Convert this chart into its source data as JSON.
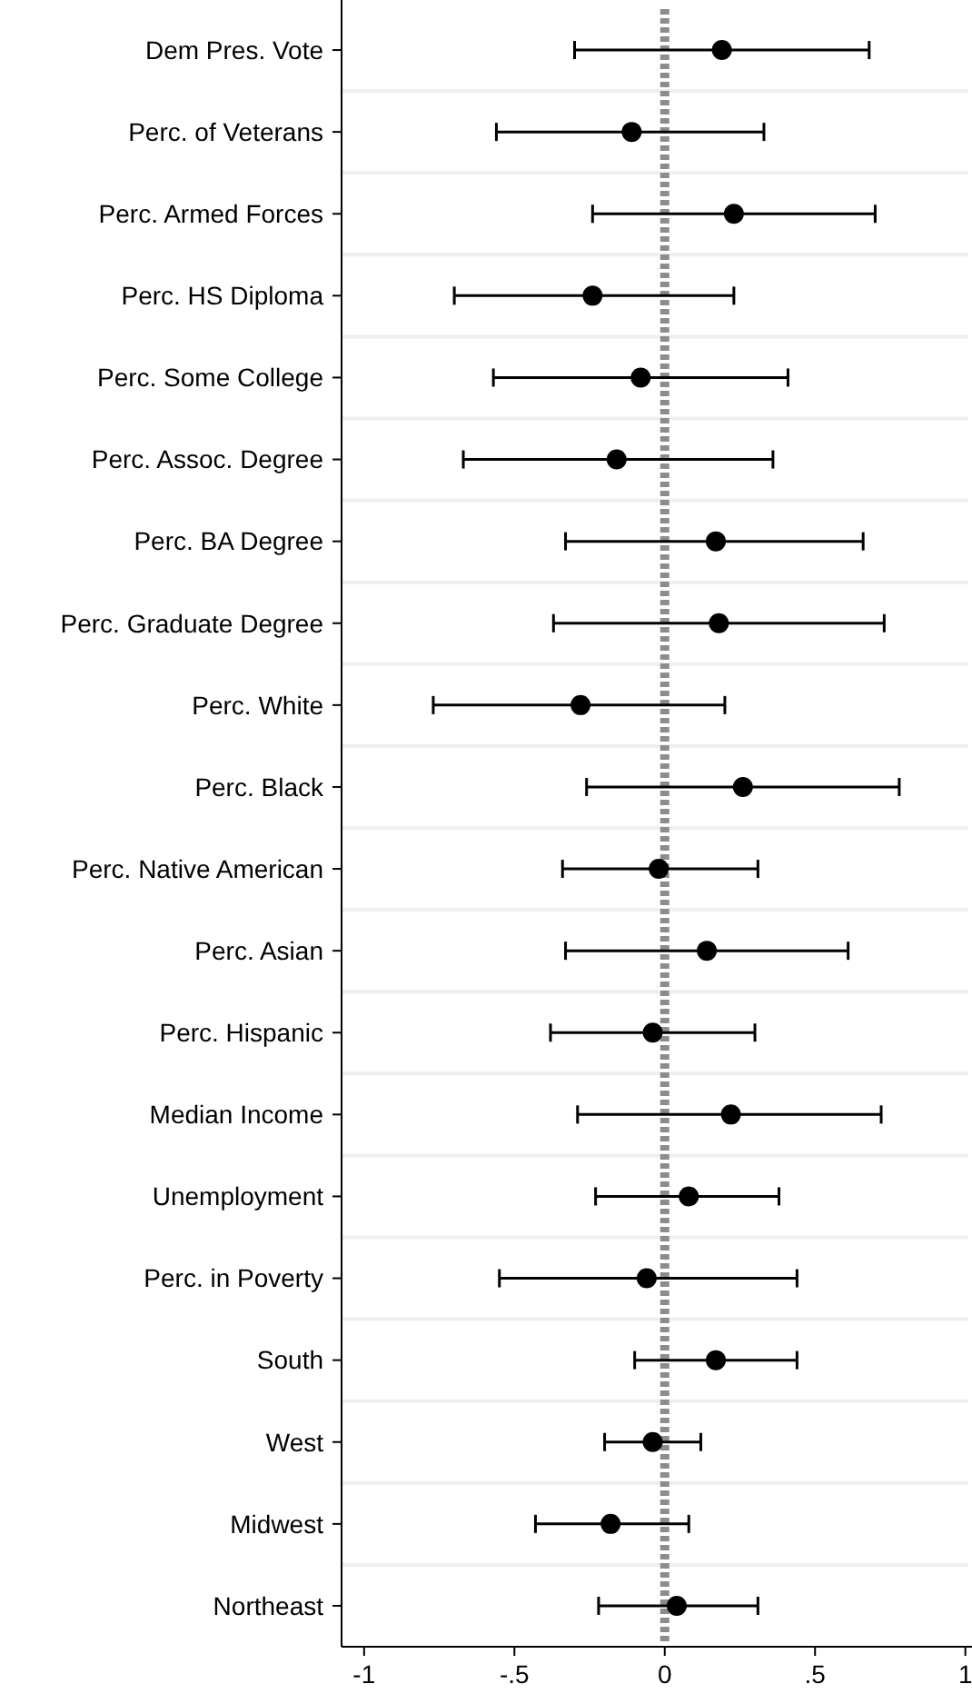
{
  "chart_data": {
    "type": "scatter",
    "orientation": "horizontal",
    "categories": [
      "Dem Pres. Vote",
      "Perc. of Veterans",
      "Perc. Armed Forces",
      "Perc. HS Diploma",
      "Perc. Some College",
      "Perc. Assoc. Degree",
      "Perc. BA Degree",
      "Perc. Graduate Degree",
      "Perc. White",
      "Perc. Black",
      "Perc. Native American",
      "Perc. Asian",
      "Perc. Hispanic",
      "Median Income",
      "Unemployment",
      "Perc. in Poverty",
      "South",
      "West",
      "Midwest",
      "Northeast"
    ],
    "values": [
      0.19,
      -0.11,
      0.23,
      -0.24,
      -0.08,
      -0.16,
      0.17,
      0.18,
      -0.28,
      0.26,
      -0.02,
      0.14,
      -0.04,
      0.22,
      0.08,
      -0.06,
      0.17,
      -0.04,
      -0.18,
      0.04
    ],
    "errors": [
      [
        -0.3,
        0.68
      ],
      [
        -0.56,
        0.33
      ],
      [
        -0.24,
        0.7
      ],
      [
        -0.7,
        0.23
      ],
      [
        -0.57,
        0.41
      ],
      [
        -0.67,
        0.36
      ],
      [
        -0.33,
        0.66
      ],
      [
        -0.37,
        0.73
      ],
      [
        -0.77,
        0.2
      ],
      [
        -0.26,
        0.78
      ],
      [
        -0.34,
        0.31
      ],
      [
        -0.33,
        0.61
      ],
      [
        -0.38,
        0.3
      ],
      [
        -0.29,
        0.72
      ],
      [
        -0.23,
        0.38
      ],
      [
        -0.55,
        0.44
      ],
      [
        -0.1,
        0.44
      ],
      [
        -0.2,
        0.12
      ],
      [
        -0.43,
        0.08
      ],
      [
        -0.22,
        0.31
      ]
    ],
    "color": "#000000",
    "marker": "circle",
    "xlim": [
      -1.075,
      1.01
    ],
    "xticks": [
      {
        "value": -1,
        "label": "-1"
      },
      {
        "value": -0.5,
        "label": "-.5"
      },
      {
        "value": 0,
        "label": "0"
      },
      {
        "value": 0.5,
        "label": ".5"
      },
      {
        "value": 1,
        "label": "1"
      }
    ],
    "grid": "y",
    "ref_lines": [
      {
        "axis": "x",
        "value": 0,
        "color": "#8c8c8c",
        "line_style": "dashed"
      }
    ]
  }
}
